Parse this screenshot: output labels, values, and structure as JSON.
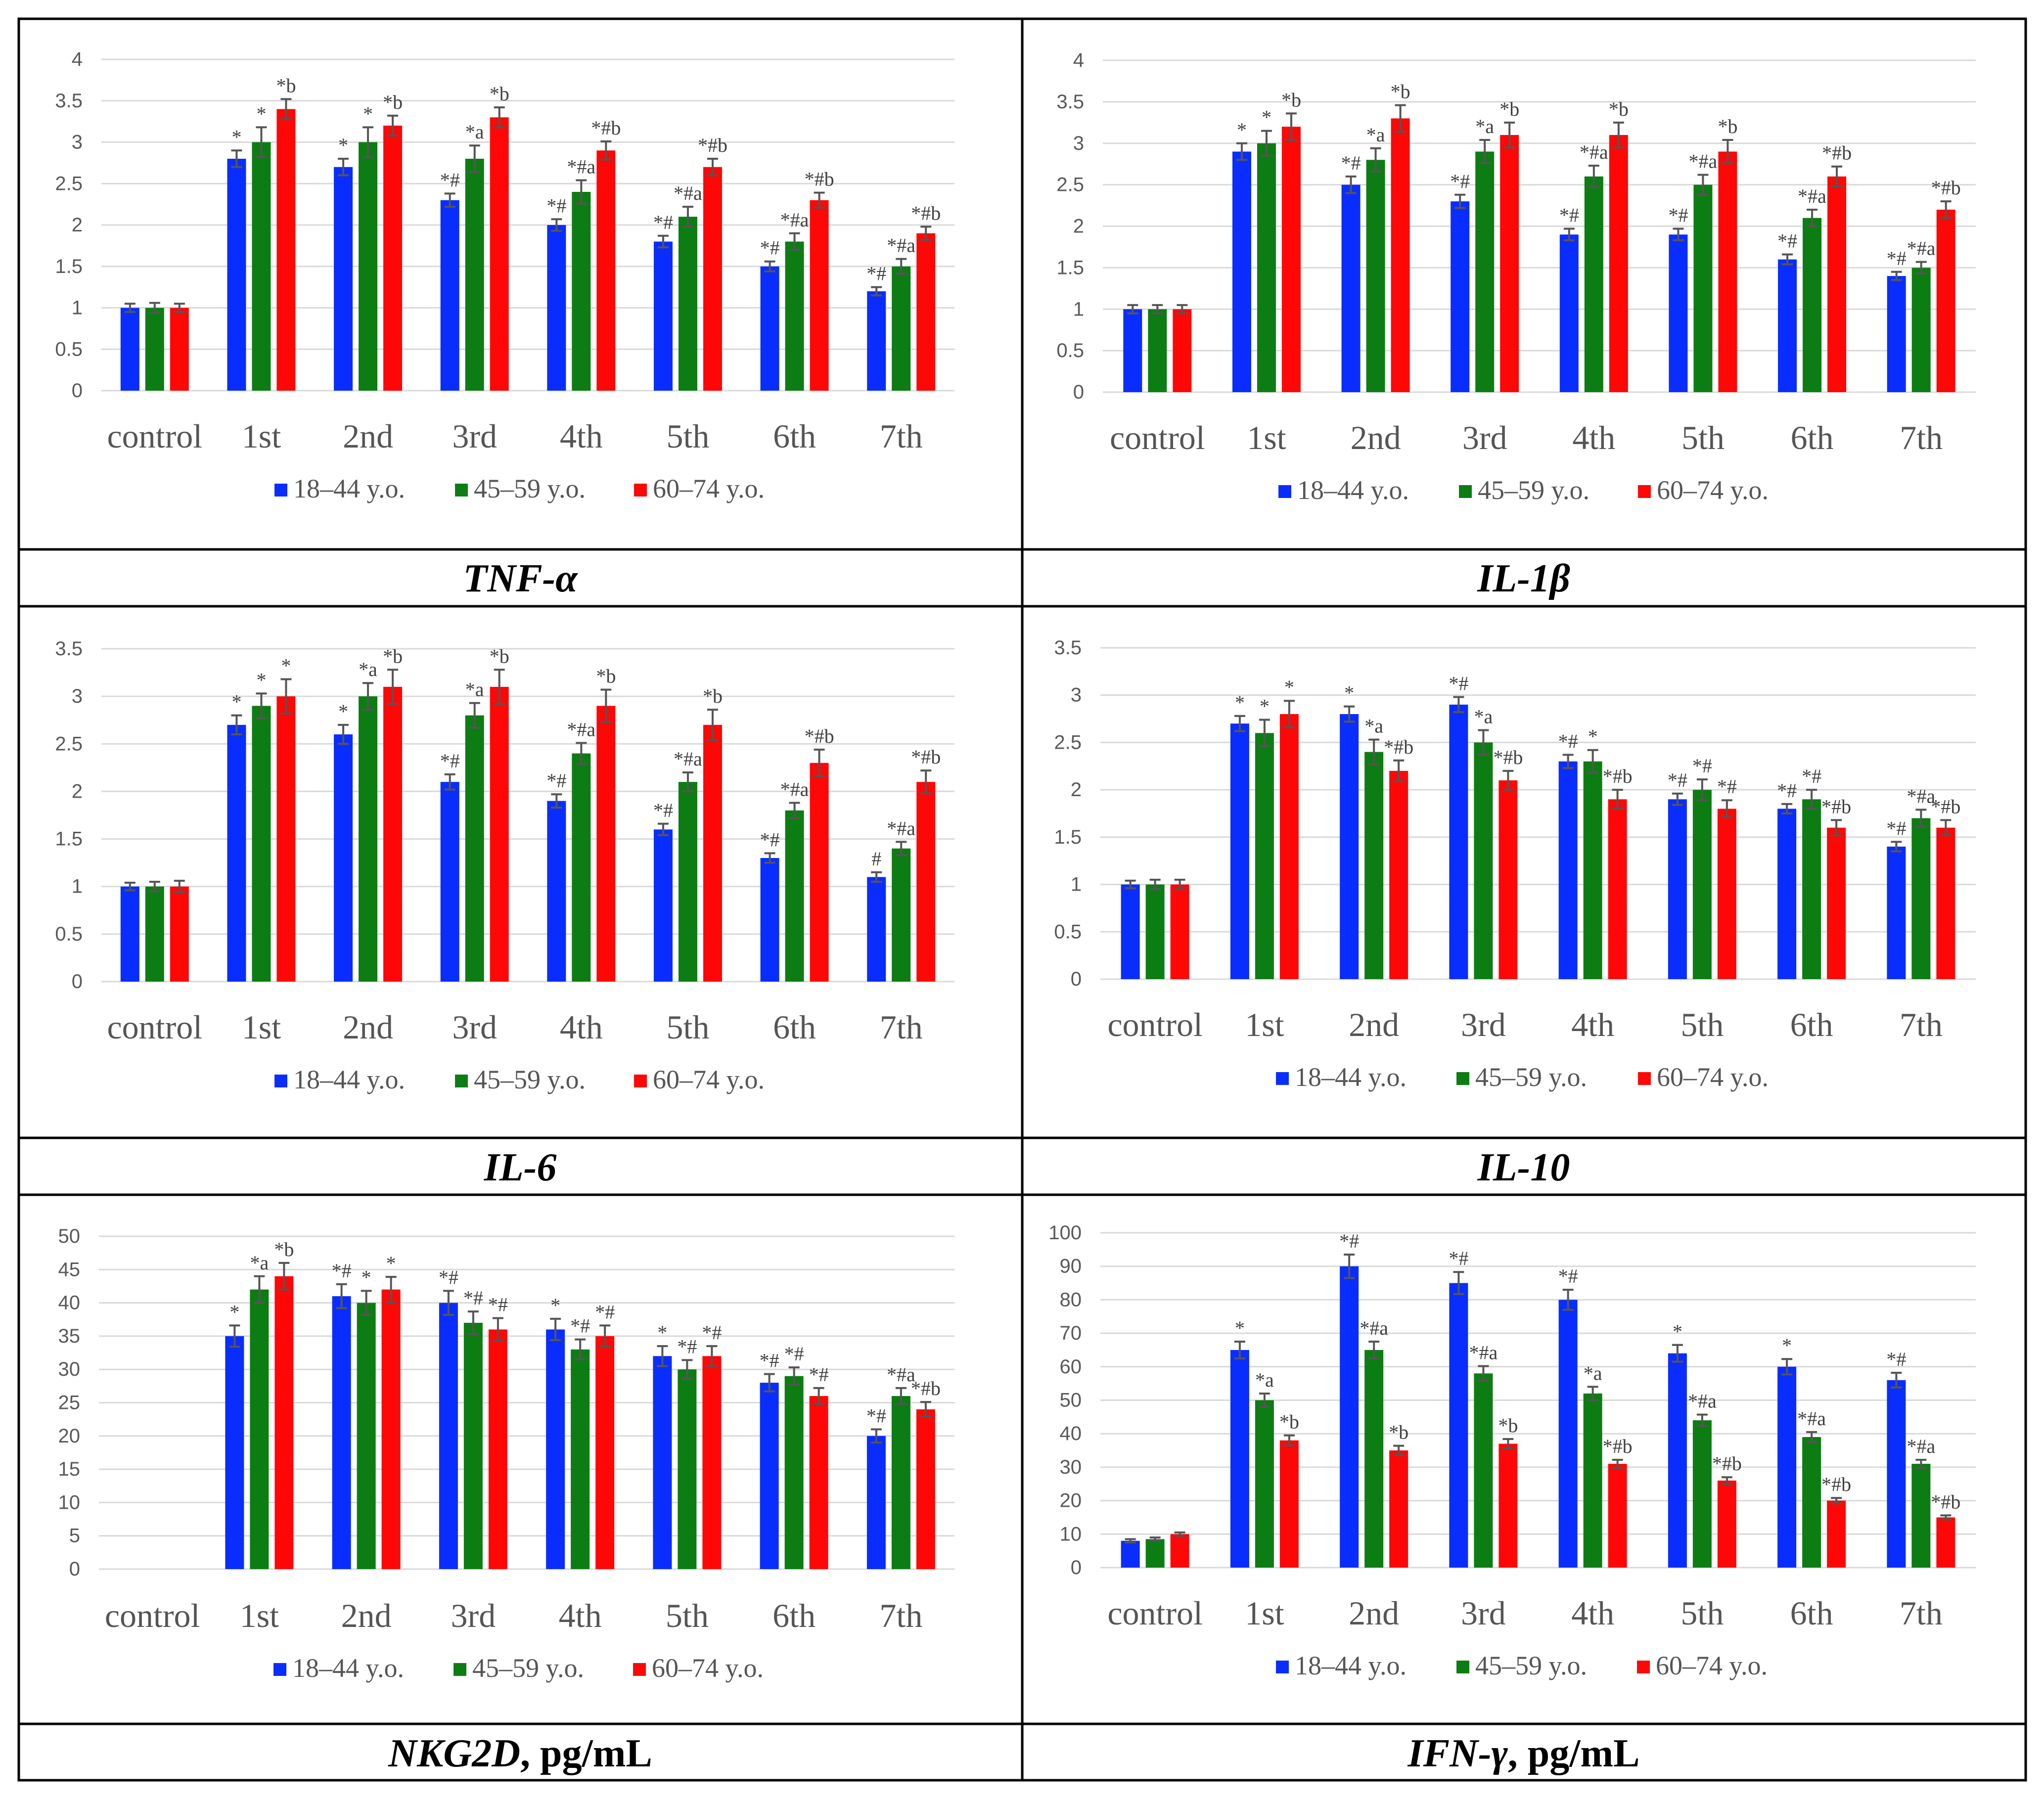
{
  "legend": [
    "18–44 y.o.",
    "45–59 y.o.",
    "60–74 y.o."
  ],
  "colors": {
    "series": [
      "#0a2dff",
      "#0c7d12",
      "#ff0707"
    ],
    "error_bar": "#555555",
    "grid": "#d9d9d9",
    "axis_text": "#595959",
    "annotation": "#404040",
    "border": "#000000"
  },
  "chart_data": [
    {
      "type": "bar",
      "title": "TNF-α",
      "unit": "",
      "categories": [
        "control",
        "1st",
        "2nd",
        "3rd",
        "4th",
        "5th",
        "6th",
        "7th"
      ],
      "ylim": [
        0,
        4
      ],
      "yticks": [
        0,
        0.5,
        1,
        1.5,
        2,
        2.5,
        3,
        3.5,
        4
      ],
      "series": [
        {
          "name": "18–44 y.o.",
          "values": [
            1.0,
            2.8,
            2.7,
            2.3,
            2.0,
            1.8,
            1.5,
            1.2
          ],
          "errors": [
            0.05,
            0.1,
            0.1,
            0.08,
            0.07,
            0.07,
            0.06,
            0.05
          ],
          "labels": [
            "",
            "*",
            "*",
            "*#",
            "*#",
            "*#",
            "*#",
            "*#"
          ]
        },
        {
          "name": "45–59 y.o.",
          "values": [
            1.0,
            3.0,
            3.0,
            2.8,
            2.4,
            2.1,
            1.8,
            1.5
          ],
          "errors": [
            0.06,
            0.18,
            0.18,
            0.16,
            0.14,
            0.12,
            0.1,
            0.09
          ],
          "labels": [
            "",
            "*",
            "*",
            "*a",
            "*#a",
            "*#a",
            "*#a",
            "*#a"
          ]
        },
        {
          "name": "60–74 y.o.",
          "values": [
            1.0,
            3.4,
            3.2,
            3.3,
            2.9,
            2.7,
            2.3,
            1.9
          ],
          "errors": [
            0.05,
            0.12,
            0.12,
            0.12,
            0.11,
            0.1,
            0.09,
            0.08
          ],
          "labels": [
            "",
            "*b",
            "*b",
            "*b",
            "*#b",
            "*#b",
            "*#b",
            "*#b"
          ]
        }
      ]
    },
    {
      "type": "bar",
      "title": "IL-1β",
      "unit": "",
      "categories": [
        "control",
        "1st",
        "2nd",
        "3rd",
        "4th",
        "5th",
        "6th",
        "7th"
      ],
      "ylim": [
        0,
        4
      ],
      "yticks": [
        0,
        0.5,
        1,
        1.5,
        2,
        2.5,
        3,
        3.5,
        4
      ],
      "series": [
        {
          "name": "18–44 y.o.",
          "values": [
            1.0,
            2.9,
            2.5,
            2.3,
            1.9,
            1.9,
            1.6,
            1.4
          ],
          "errors": [
            0.05,
            0.1,
            0.1,
            0.08,
            0.07,
            0.07,
            0.06,
            0.05
          ],
          "labels": [
            "",
            "*",
            "*#",
            "*#",
            "*#",
            "*#",
            "*#",
            "*#"
          ]
        },
        {
          "name": "45–59 y.o.",
          "values": [
            1.0,
            3.0,
            2.8,
            2.9,
            2.6,
            2.5,
            2.1,
            1.5
          ],
          "errors": [
            0.05,
            0.15,
            0.14,
            0.14,
            0.13,
            0.12,
            0.1,
            0.07
          ],
          "labels": [
            "",
            "*",
            "*a",
            "*a",
            "*#a",
            "*#a",
            "*#a",
            "*#a"
          ]
        },
        {
          "name": "60–74 y.o.",
          "values": [
            1.0,
            3.2,
            3.3,
            3.1,
            3.1,
            2.9,
            2.6,
            2.2
          ],
          "errors": [
            0.05,
            0.16,
            0.16,
            0.15,
            0.15,
            0.14,
            0.12,
            0.1
          ],
          "labels": [
            "",
            "*b",
            "*b",
            "*b",
            "*b",
            "*b",
            "*#b",
            "*#b"
          ]
        }
      ]
    },
    {
      "type": "bar",
      "title": "IL-6",
      "unit": "",
      "categories": [
        "control",
        "1st",
        "2nd",
        "3rd",
        "4th",
        "5th",
        "6th",
        "7th"
      ],
      "ylim": [
        0,
        3.5
      ],
      "yticks": [
        0,
        0.5,
        1,
        1.5,
        2,
        2.5,
        3,
        3.5
      ],
      "series": [
        {
          "name": "18–44 y.o.",
          "values": [
            1.0,
            2.7,
            2.6,
            2.1,
            1.9,
            1.6,
            1.3,
            1.1
          ],
          "errors": [
            0.04,
            0.1,
            0.1,
            0.08,
            0.07,
            0.06,
            0.05,
            0.05
          ],
          "labels": [
            "",
            "*",
            "*",
            "*#",
            "*#",
            "*#",
            "*#",
            "#"
          ]
        },
        {
          "name": "45–59 y.o.",
          "values": [
            1.0,
            2.9,
            3.0,
            2.8,
            2.4,
            2.1,
            1.8,
            1.4
          ],
          "errors": [
            0.05,
            0.13,
            0.14,
            0.13,
            0.11,
            0.1,
            0.08,
            0.07
          ],
          "labels": [
            "",
            "*",
            "*a",
            "*a",
            "*#a",
            "*#a",
            "*#a",
            "*#a"
          ]
        },
        {
          "name": "60–74 y.o.",
          "values": [
            1.0,
            3.0,
            3.1,
            3.1,
            2.9,
            2.7,
            2.3,
            2.1
          ],
          "errors": [
            0.06,
            0.18,
            0.18,
            0.18,
            0.17,
            0.16,
            0.14,
            0.12
          ],
          "labels": [
            "",
            "*",
            "*b",
            "*b",
            "*b",
            "*b",
            "*#b",
            "*#b"
          ]
        }
      ]
    },
    {
      "type": "bar",
      "title": "IL-10",
      "unit": "",
      "categories": [
        "control",
        "1st",
        "2nd",
        "3rd",
        "4th",
        "5th",
        "6th",
        "7th"
      ],
      "ylim": [
        0,
        3.5
      ],
      "yticks": [
        0,
        0.5,
        1,
        1.5,
        2,
        2.5,
        3,
        3.5
      ],
      "series": [
        {
          "name": "18–44 y.o.",
          "values": [
            1.0,
            2.7,
            2.8,
            2.9,
            2.3,
            1.9,
            1.8,
            1.4
          ],
          "errors": [
            0.04,
            0.08,
            0.08,
            0.08,
            0.07,
            0.06,
            0.05,
            0.05
          ],
          "labels": [
            "",
            "*",
            "*",
            "*#",
            "*#",
            "*#",
            "*#",
            "*#"
          ]
        },
        {
          "name": "45–59 y.o.",
          "values": [
            1.0,
            2.6,
            2.4,
            2.5,
            2.3,
            2.0,
            1.9,
            1.7
          ],
          "errors": [
            0.05,
            0.14,
            0.13,
            0.13,
            0.12,
            0.11,
            0.1,
            0.09
          ],
          "labels": [
            "",
            "*",
            "*a",
            "*a",
            "*",
            "*#",
            "*#",
            "*#a"
          ]
        },
        {
          "name": "60–74 y.o.",
          "values": [
            1.0,
            2.8,
            2.2,
            2.1,
            1.9,
            1.8,
            1.6,
            1.6
          ],
          "errors": [
            0.05,
            0.14,
            0.11,
            0.1,
            0.1,
            0.09,
            0.08,
            0.08
          ],
          "labels": [
            "",
            "*",
            "*#b",
            "*#b",
            "*#b",
            "*#",
            "*#b",
            "*#b"
          ]
        }
      ]
    },
    {
      "type": "bar",
      "title": "NKG2D",
      "unit": "pg/mL",
      "categories": [
        "control",
        "1st",
        "2nd",
        "3rd",
        "4th",
        "5th",
        "6th",
        "7th"
      ],
      "ylim": [
        0,
        50
      ],
      "yticks": [
        0,
        5,
        10,
        15,
        20,
        25,
        30,
        35,
        40,
        45,
        50
      ],
      "series": [
        {
          "name": "18–44 y.o.",
          "values": [
            0,
            35,
            41,
            40,
            36,
            32,
            28,
            20
          ],
          "errors": [
            0,
            1.6,
            1.8,
            1.8,
            1.6,
            1.5,
            1.3,
            1.0
          ],
          "labels": [
            "",
            "*",
            "*#",
            "*#",
            "*",
            "*",
            "*#",
            "*#"
          ]
        },
        {
          "name": "45–59 y.o.",
          "values": [
            0,
            42,
            40,
            37,
            33,
            30,
            29,
            26
          ],
          "errors": [
            0,
            2.0,
            1.8,
            1.7,
            1.5,
            1.4,
            1.3,
            1.2
          ],
          "labels": [
            "",
            "*a",
            "*",
            "*#",
            "*#",
            "*#",
            "*#",
            "*#a"
          ]
        },
        {
          "name": "60–74 y.o.",
          "values": [
            0,
            44,
            42,
            36,
            35,
            32,
            26,
            24
          ],
          "errors": [
            0,
            2.0,
            1.9,
            1.7,
            1.6,
            1.5,
            1.2,
            1.1
          ],
          "labels": [
            "",
            "*b",
            "*",
            "*#",
            "*#",
            "*#",
            "*#",
            "*#b"
          ]
        }
      ]
    },
    {
      "type": "bar",
      "title": "IFN-γ",
      "unit": "pg/mL",
      "categories": [
        "control",
        "1st",
        "2nd",
        "3rd",
        "4th",
        "5th",
        "6th",
        "7th"
      ],
      "ylim": [
        0,
        100
      ],
      "yticks": [
        0,
        10,
        20,
        30,
        40,
        50,
        60,
        70,
        80,
        90,
        100
      ],
      "series": [
        {
          "name": "18–44 y.o.",
          "values": [
            8,
            65,
            90,
            85,
            80,
            64,
            60,
            56
          ],
          "errors": [
            0.5,
            2.5,
            3.5,
            3.3,
            3.0,
            2.5,
            2.3,
            2.2
          ],
          "labels": [
            "",
            "*",
            "*#",
            "*#",
            "*#",
            "*",
            "*",
            "*#"
          ]
        },
        {
          "name": "45–59 y.o.",
          "values": [
            8.5,
            50,
            65,
            58,
            52,
            44,
            39,
            31
          ],
          "errors": [
            0.5,
            2.0,
            2.5,
            2.2,
            2.0,
            1.7,
            1.5,
            1.2
          ],
          "labels": [
            "",
            "*a",
            "*#a",
            "*#a",
            "*a",
            "*#a",
            "*#a",
            "*#a"
          ]
        },
        {
          "name": "60–74 y.o.",
          "values": [
            10,
            38,
            35,
            37,
            31,
            26,
            20,
            15
          ],
          "errors": [
            0.5,
            1.5,
            1.4,
            1.4,
            1.2,
            1.0,
            0.8,
            0.6
          ],
          "labels": [
            "",
            "*b",
            "*b",
            "*b",
            "*#b",
            "*#b",
            "*#b",
            "*#b"
          ]
        }
      ]
    }
  ]
}
